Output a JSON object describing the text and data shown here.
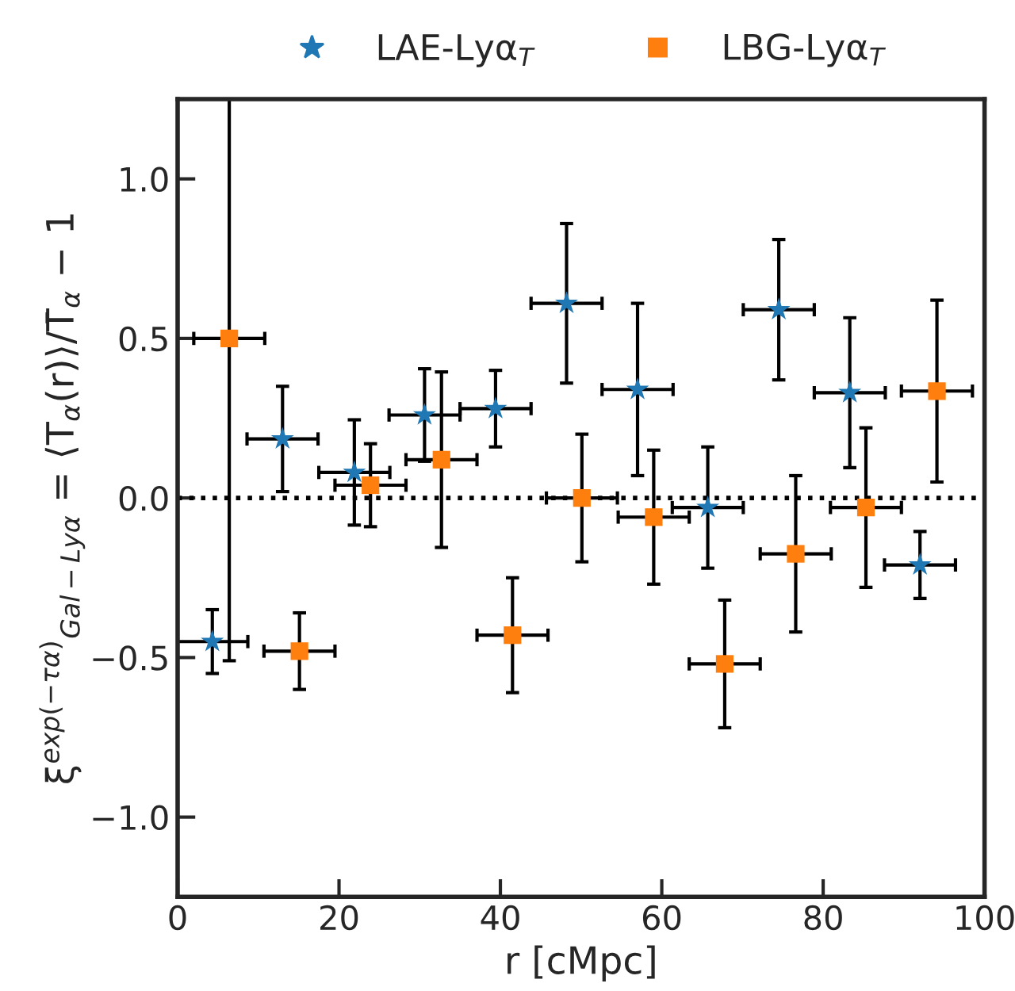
{
  "chart_data": {
    "type": "scatter",
    "xlabel": "r [cMpc]",
    "ylabel": "ξ$^{exp(−τα)}$$_{Gal−Lyα}$ = ⟨T$_{α}$(r)⟩/T̄$_{α}$ − 1",
    "xlim": [
      0,
      100
    ],
    "xticks": [
      0,
      20,
      40,
      60,
      80,
      100
    ],
    "ylim": [
      -1.25,
      1.25
    ],
    "yticks": [
      {
        "value": -1.0,
        "label": "−1.0"
      },
      {
        "value": -0.5,
        "label": "−0.5"
      },
      {
        "value": 0.0,
        "label": "0.0"
      },
      {
        "value": 0.5,
        "label": "0.5"
      },
      {
        "value": 1.0,
        "label": "1.0"
      }
    ],
    "grid": false,
    "legend": "top",
    "ref_lines": [
      {
        "axis": "y",
        "value": 0,
        "line_style": "dotted",
        "color": "#000000"
      }
    ],
    "series": [
      {
        "name": "LAE-Lyα$_{T}$",
        "color": "#1f77b4",
        "marker": "star",
        "x": [
          4.3,
          13.0,
          21.9,
          30.6,
          39.4,
          48.2,
          57.0,
          65.7,
          74.5,
          83.3,
          92.0
        ],
        "values": [
          -0.45,
          0.185,
          0.08,
          0.26,
          0.28,
          0.61,
          0.34,
          -0.03,
          0.59,
          0.33,
          -0.21
        ],
        "errors": [
          0.1,
          0.165,
          0.165,
          0.145,
          0.12,
          0.25,
          0.27,
          0.19,
          0.22,
          0.235,
          0.105
        ],
        "xerrors": [
          4.4,
          4.4,
          4.4,
          4.4,
          4.4,
          4.4,
          4.4,
          4.4,
          4.4,
          4.4,
          4.4
        ]
      },
      {
        "name": "LBG-Lyα$_{T}$",
        "color": "#ff7f0e",
        "marker": "square",
        "x": [
          6.4,
          15.1,
          23.9,
          32.7,
          41.5,
          50.1,
          59.0,
          67.8,
          76.6,
          85.3,
          94.1
        ],
        "values": [
          0.5,
          -0.48,
          0.04,
          0.12,
          -0.43,
          0.0,
          -0.06,
          -0.52,
          -0.175,
          -0.03,
          0.335
        ],
        "errors": [
          [
            -0.51,
            1.25
          ],
          0.12,
          0.13,
          0.275,
          0.18,
          0.2,
          0.21,
          0.2,
          0.245,
          0.25,
          0.285
        ],
        "xerrors": [
          4.4,
          4.4,
          4.4,
          4.4,
          4.4,
          4.4,
          4.4,
          4.4,
          4.4,
          4.4,
          4.4
        ]
      }
    ]
  }
}
